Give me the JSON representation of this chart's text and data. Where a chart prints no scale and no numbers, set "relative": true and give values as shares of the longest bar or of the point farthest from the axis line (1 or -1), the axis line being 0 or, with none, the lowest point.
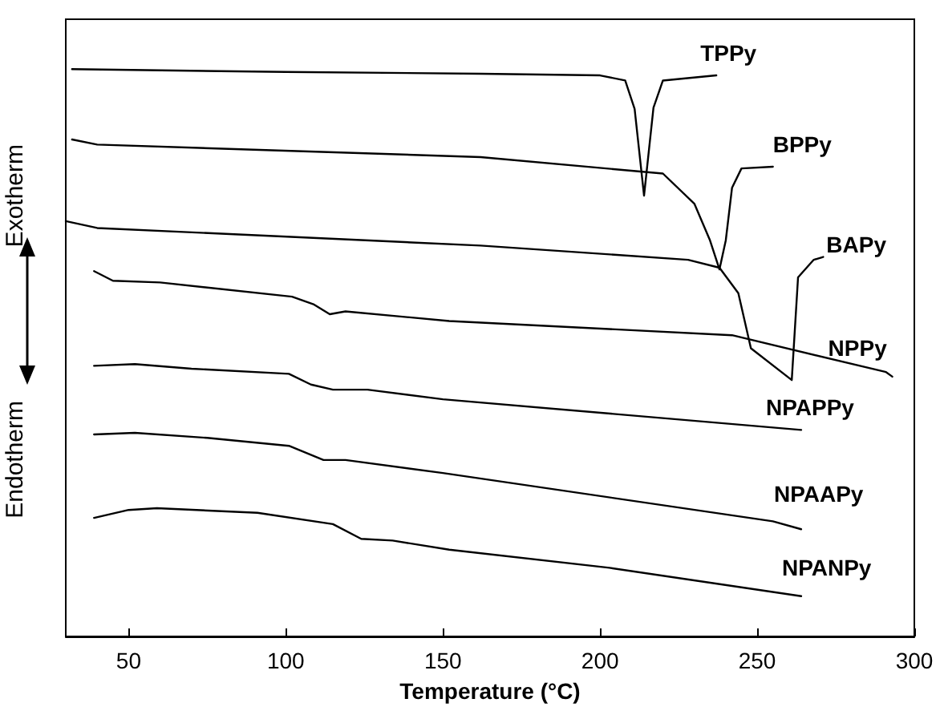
{
  "chart_data": {
    "type": "line",
    "relative": true,
    "xlabel": "Temperature (°C)",
    "ylabel": "Exotherm",
    "annotations": [
      "Endotherm"
    ],
    "xlim": [
      30,
      300
    ],
    "xticks": [
      50,
      100,
      150,
      200,
      250,
      300
    ],
    "grid": false,
    "legend": false,
    "marker": "none",
    "line_style": "solid",
    "series": [
      {
        "name": "TPPy",
        "color": "#000000",
        "x": [
          32,
          100,
          162,
          200,
          208,
          211,
          214,
          217,
          220,
          237
        ],
        "values": [
          1.0,
          0.995,
          0.992,
          0.989,
          0.98,
          0.93,
          0.777,
          0.932,
          0.98,
          0.989
        ]
      },
      {
        "name": "BPPy",
        "color": "#000000",
        "x": [
          32,
          40,
          162,
          220,
          230,
          235,
          238,
          240,
          242,
          245,
          255
        ],
        "values": [
          0.876,
          0.867,
          0.845,
          0.816,
          0.763,
          0.698,
          0.647,
          0.698,
          0.791,
          0.825,
          0.828
        ]
      },
      {
        "name": "BAPy",
        "color": "#000000",
        "x": [
          30,
          40,
          162,
          228,
          238,
          244,
          248,
          261,
          263,
          268,
          271
        ],
        "values": [
          0.732,
          0.72,
          0.689,
          0.664,
          0.65,
          0.605,
          0.508,
          0.452,
          0.633,
          0.664,
          0.669
        ]
      },
      {
        "name": "NPPy",
        "color": "#000000",
        "x": [
          39,
          45,
          60,
          102,
          109,
          114,
          119,
          152,
          242,
          291,
          293
        ],
        "values": [
          0.644,
          0.627,
          0.624,
          0.599,
          0.585,
          0.568,
          0.573,
          0.556,
          0.531,
          0.466,
          0.458
        ]
      },
      {
        "name": "NPAPPy",
        "color": "#000000",
        "x": [
          39,
          52,
          70,
          101,
          108,
          115,
          126,
          150,
          264
        ],
        "values": [
          0.477,
          0.48,
          0.472,
          0.463,
          0.444,
          0.435,
          0.435,
          0.418,
          0.364
        ]
      },
      {
        "name": "NPAAPy",
        "color": "#000000",
        "x": [
          39,
          52,
          75,
          101,
          112,
          119,
          150,
          255,
          264
        ],
        "values": [
          0.356,
          0.359,
          0.35,
          0.336,
          0.311,
          0.311,
          0.288,
          0.203,
          0.189
        ]
      },
      {
        "name": "NPANPy",
        "color": "#000000",
        "x": [
          39,
          50,
          59,
          91,
          115,
          124,
          134,
          152,
          203,
          264
        ],
        "values": [
          0.209,
          0.223,
          0.226,
          0.218,
          0.198,
          0.172,
          0.169,
          0.153,
          0.121,
          0.071
        ]
      }
    ]
  }
}
